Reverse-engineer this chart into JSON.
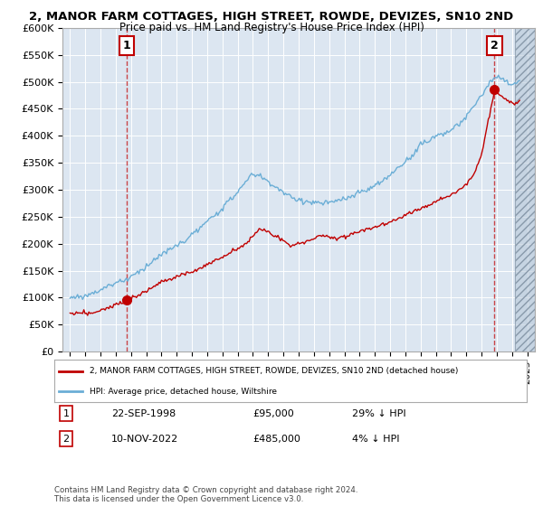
{
  "title": "2, MANOR FARM COTTAGES, HIGH STREET, ROWDE, DEVIZES, SN10 2ND",
  "subtitle": "Price paid vs. HM Land Registry's House Price Index (HPI)",
  "hpi_label": "HPI: Average price, detached house, Wiltshire",
  "property_label": "2, MANOR FARM COTTAGES, HIGH STREET, ROWDE, DEVIZES, SN10 2ND (detached house)",
  "sale1_date": "22-SEP-1998",
  "sale1_price": 95000,
  "sale1_hpi": "29% ↓ HPI",
  "sale2_date": "10-NOV-2022",
  "sale2_price": 485000,
  "sale2_hpi": "4% ↓ HPI",
  "footer": "Contains HM Land Registry data © Crown copyright and database right 2024.\nThis data is licensed under the Open Government Licence v3.0.",
  "hpi_color": "#6baed6",
  "sale_color": "#c00000",
  "background_color": "#dce6f1",
  "ylim": [
    0,
    600000
  ],
  "yticks": [
    0,
    50000,
    100000,
    150000,
    200000,
    250000,
    300000,
    350000,
    400000,
    450000,
    500000,
    550000,
    600000
  ],
  "sale1_year": 1998.72,
  "sale2_year": 2022.85,
  "xstart": 1994.5,
  "xend": 2025.5
}
